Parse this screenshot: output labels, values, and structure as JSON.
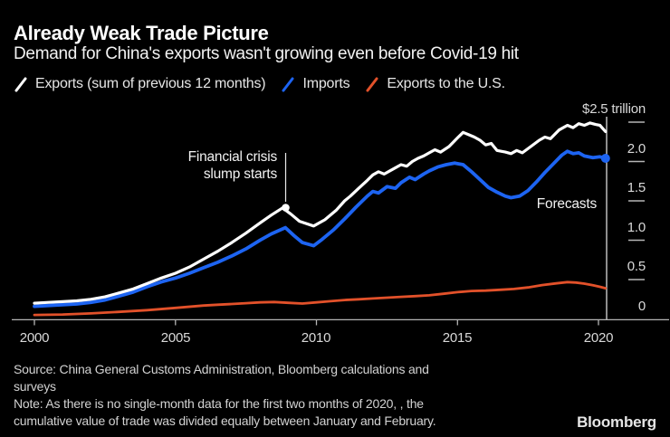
{
  "header": {
    "title": "Already Weak Trade Picture",
    "subtitle": "Demand for China's exports wasn't growing even before Covid-19 hit"
  },
  "legend": {
    "items": [
      {
        "label": "Exports (sum of previous 12 months)",
        "color": "#ffffff"
      },
      {
        "label": "Imports",
        "color": "#1d64f2"
      },
      {
        "label": "Exports to the U.S.",
        "color": "#e2512a"
      }
    ]
  },
  "annotations": {
    "financial_crisis": {
      "line1": "Financial crisis",
      "line2": "slump starts",
      "marker_year": 2008.8,
      "marker_value": 1.41
    },
    "forecasts": {
      "label": "Forecasts",
      "line_year": 2020.3
    }
  },
  "y_axis": {
    "labels": [
      "$2.5 trillion",
      "2.0",
      "1.5",
      "1.0",
      "0.5",
      "0"
    ],
    "tick_values": [
      2.5,
      2.0,
      1.5,
      1.0,
      0.5,
      0
    ]
  },
  "x_axis": {
    "labels": [
      "2000",
      "2005",
      "2010",
      "2015",
      "2020"
    ]
  },
  "chart_data": {
    "type": "line",
    "title": "Already Weak Trade Picture",
    "unit": "USD trillion, sum of previous 12 months",
    "x_range": [
      2000,
      2020.3
    ],
    "y_range": [
      0,
      2.5
    ],
    "x_ticks": [
      2000,
      2005,
      2010,
      2015,
      2020
    ],
    "y_ticks": [
      0,
      0.5,
      1.0,
      1.5,
      2.0,
      2.5
    ],
    "grid": false,
    "legend_position": "top",
    "series": [
      {
        "name": "Exports to the U.S.",
        "color": "#e2512a",
        "stroke_width": 2.8,
        "end_marker": false,
        "points": [
          [
            2000,
            0.05
          ],
          [
            2001,
            0.056
          ],
          [
            2002,
            0.07
          ],
          [
            2003,
            0.09
          ],
          [
            2004,
            0.112
          ],
          [
            2005,
            0.14
          ],
          [
            2006,
            0.17
          ],
          [
            2006.5,
            0.18
          ],
          [
            2007,
            0.19
          ],
          [
            2007.5,
            0.2
          ],
          [
            2008,
            0.21
          ],
          [
            2008.5,
            0.215
          ],
          [
            2009,
            0.205
          ],
          [
            2009.5,
            0.195
          ],
          [
            2010,
            0.21
          ],
          [
            2010.5,
            0.225
          ],
          [
            2011,
            0.24
          ],
          [
            2011.5,
            0.25
          ],
          [
            2012,
            0.26
          ],
          [
            2012.5,
            0.27
          ],
          [
            2013,
            0.28
          ],
          [
            2013.5,
            0.29
          ],
          [
            2014,
            0.3
          ],
          [
            2014.5,
            0.32
          ],
          [
            2015,
            0.34
          ],
          [
            2015.5,
            0.355
          ],
          [
            2016,
            0.36
          ],
          [
            2016.5,
            0.37
          ],
          [
            2017,
            0.38
          ],
          [
            2017.5,
            0.4
          ],
          [
            2018,
            0.43
          ],
          [
            2018.5,
            0.452
          ],
          [
            2018.9,
            0.468
          ],
          [
            2019.2,
            0.462
          ],
          [
            2019.5,
            0.448
          ],
          [
            2019.8,
            0.428
          ],
          [
            2020.05,
            0.408
          ],
          [
            2020.25,
            0.39
          ]
        ]
      },
      {
        "name": "Imports",
        "color": "#1d64f2",
        "stroke_width": 3.8,
        "end_marker": true,
        "points": [
          [
            2000,
            0.16
          ],
          [
            2000.5,
            0.17
          ],
          [
            2001,
            0.18
          ],
          [
            2001.5,
            0.19
          ],
          [
            2002,
            0.21
          ],
          [
            2002.5,
            0.24
          ],
          [
            2003,
            0.29
          ],
          [
            2003.5,
            0.34
          ],
          [
            2004,
            0.41
          ],
          [
            2004.5,
            0.47
          ],
          [
            2005,
            0.52
          ],
          [
            2005.5,
            0.58
          ],
          [
            2006,
            0.65
          ],
          [
            2006.5,
            0.72
          ],
          [
            2007,
            0.8
          ],
          [
            2007.5,
            0.89
          ],
          [
            2008,
            1.0
          ],
          [
            2008.4,
            1.08
          ],
          [
            2008.9,
            1.16
          ],
          [
            2009.2,
            1.06
          ],
          [
            2009.5,
            0.97
          ],
          [
            2009.9,
            0.93
          ],
          [
            2010.2,
            1.01
          ],
          [
            2010.6,
            1.13
          ],
          [
            2011,
            1.27
          ],
          [
            2011.4,
            1.42
          ],
          [
            2011.8,
            1.56
          ],
          [
            2012,
            1.62
          ],
          [
            2012.2,
            1.6
          ],
          [
            2012.5,
            1.68
          ],
          [
            2012.8,
            1.66
          ],
          [
            2013,
            1.73
          ],
          [
            2013.3,
            1.8
          ],
          [
            2013.5,
            1.77
          ],
          [
            2013.8,
            1.84
          ],
          [
            2014,
            1.88
          ],
          [
            2014.3,
            1.93
          ],
          [
            2014.6,
            1.96
          ],
          [
            2014.9,
            1.98
          ],
          [
            2015.2,
            1.96
          ],
          [
            2015.5,
            1.87
          ],
          [
            2015.8,
            1.77
          ],
          [
            2016.1,
            1.67
          ],
          [
            2016.4,
            1.61
          ],
          [
            2016.7,
            1.56
          ],
          [
            2016.9,
            1.54
          ],
          [
            2017.2,
            1.56
          ],
          [
            2017.5,
            1.63
          ],
          [
            2017.8,
            1.74
          ],
          [
            2018.1,
            1.86
          ],
          [
            2018.4,
            1.97
          ],
          [
            2018.7,
            2.08
          ],
          [
            2018.9,
            2.13
          ],
          [
            2019.1,
            2.1
          ],
          [
            2019.3,
            2.11
          ],
          [
            2019.5,
            2.07
          ],
          [
            2019.8,
            2.05
          ],
          [
            2020.05,
            2.06
          ],
          [
            2020.25,
            2.04
          ]
        ]
      },
      {
        "name": "Exports (sum of previous 12 months)",
        "color": "#ffffff",
        "stroke_width": 3.2,
        "end_marker": false,
        "points": [
          [
            2000,
            0.2
          ],
          [
            2000.5,
            0.21
          ],
          [
            2001,
            0.22
          ],
          [
            2001.5,
            0.23
          ],
          [
            2002,
            0.25
          ],
          [
            2002.5,
            0.28
          ],
          [
            2003,
            0.33
          ],
          [
            2003.5,
            0.38
          ],
          [
            2004,
            0.45
          ],
          [
            2004.5,
            0.52
          ],
          [
            2005,
            0.58
          ],
          [
            2005.5,
            0.66
          ],
          [
            2006,
            0.76
          ],
          [
            2006.5,
            0.86
          ],
          [
            2007,
            0.97
          ],
          [
            2007.5,
            1.09
          ],
          [
            2008,
            1.22
          ],
          [
            2008.4,
            1.32
          ],
          [
            2008.8,
            1.41
          ],
          [
            2009.1,
            1.33
          ],
          [
            2009.4,
            1.24
          ],
          [
            2009.9,
            1.18
          ],
          [
            2010.3,
            1.26
          ],
          [
            2010.7,
            1.38
          ],
          [
            2011,
            1.5
          ],
          [
            2011.2,
            1.56
          ],
          [
            2011.5,
            1.66
          ],
          [
            2011.8,
            1.76
          ],
          [
            2012,
            1.83
          ],
          [
            2012.2,
            1.87
          ],
          [
            2012.4,
            1.84
          ],
          [
            2012.7,
            1.9
          ],
          [
            2013,
            1.96
          ],
          [
            2013.2,
            1.94
          ],
          [
            2013.4,
            2.0
          ],
          [
            2013.6,
            2.04
          ],
          [
            2013.8,
            2.07
          ],
          [
            2014,
            2.11
          ],
          [
            2014.2,
            2.15
          ],
          [
            2014.4,
            2.12
          ],
          [
            2014.7,
            2.19
          ],
          [
            2015,
            2.3
          ],
          [
            2015.2,
            2.37
          ],
          [
            2015.4,
            2.34
          ],
          [
            2015.6,
            2.31
          ],
          [
            2015.8,
            2.27
          ],
          [
            2016,
            2.21
          ],
          [
            2016.2,
            2.23
          ],
          [
            2016.4,
            2.14
          ],
          [
            2016.7,
            2.12
          ],
          [
            2016.9,
            2.1
          ],
          [
            2017.1,
            2.14
          ],
          [
            2017.3,
            2.11
          ],
          [
            2017.6,
            2.19
          ],
          [
            2017.9,
            2.27
          ],
          [
            2018.1,
            2.31
          ],
          [
            2018.3,
            2.29
          ],
          [
            2018.6,
            2.4
          ],
          [
            2018.9,
            2.46
          ],
          [
            2019.1,
            2.43
          ],
          [
            2019.3,
            2.48
          ],
          [
            2019.5,
            2.46
          ],
          [
            2019.7,
            2.49
          ],
          [
            2019.9,
            2.47
          ],
          [
            2020.05,
            2.46
          ],
          [
            2020.25,
            2.38
          ]
        ]
      }
    ]
  },
  "footer": {
    "lines": [
      "Source: China General Customs Administration, Bloomberg calculations and",
      "surveys",
      "Note: As there is no single-month data for the first two months of 2020, , the",
      "cumulative value of trade was divided equally between January and February."
    ],
    "logo": "Bloomberg"
  }
}
